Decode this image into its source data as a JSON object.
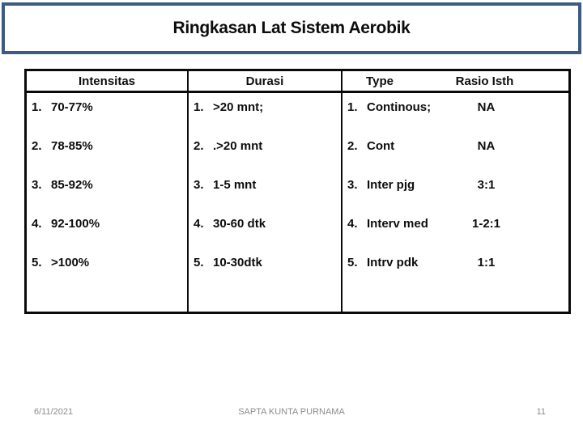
{
  "title": "Ringkasan Lat Sistem Aerobik",
  "table": {
    "headers": {
      "intensitas": "Intensitas",
      "durasi": "Durasi",
      "type": "Type",
      "rasio": "Rasio Isth"
    },
    "rows": [
      {
        "num": "1.",
        "intensitas": "70-77%",
        "durasi": ">20 mnt;",
        "type": "Continous;",
        "rasio": "NA"
      },
      {
        "num": "2.",
        "intensitas": "78-85%",
        "durasi": ".>20 mnt",
        "type": "Cont",
        "rasio": "NA"
      },
      {
        "num": "3.",
        "intensitas": "85-92%",
        "durasi": "1-5 mnt",
        "type": "Inter pjg",
        "rasio": "3:1"
      },
      {
        "num": "4.",
        "intensitas": "92-100%",
        "durasi": "30-60 dtk",
        "type": "Interv med",
        "rasio": "1-2:1"
      },
      {
        "num": "5.",
        "intensitas": ">100%",
        "durasi": "10-30dtk",
        "type": "Intrv pdk",
        "rasio": "1:1"
      }
    ]
  },
  "footer": {
    "date": "6/11/2021",
    "author": "SAPTA KUNTA PURNAMA",
    "page": "11"
  },
  "colors": {
    "title_border": "#3c5a82",
    "table_border": "#0a0a0a",
    "text": "#0d0d0d",
    "footer_text": "#8c8c8c",
    "background": "#ffffff"
  }
}
